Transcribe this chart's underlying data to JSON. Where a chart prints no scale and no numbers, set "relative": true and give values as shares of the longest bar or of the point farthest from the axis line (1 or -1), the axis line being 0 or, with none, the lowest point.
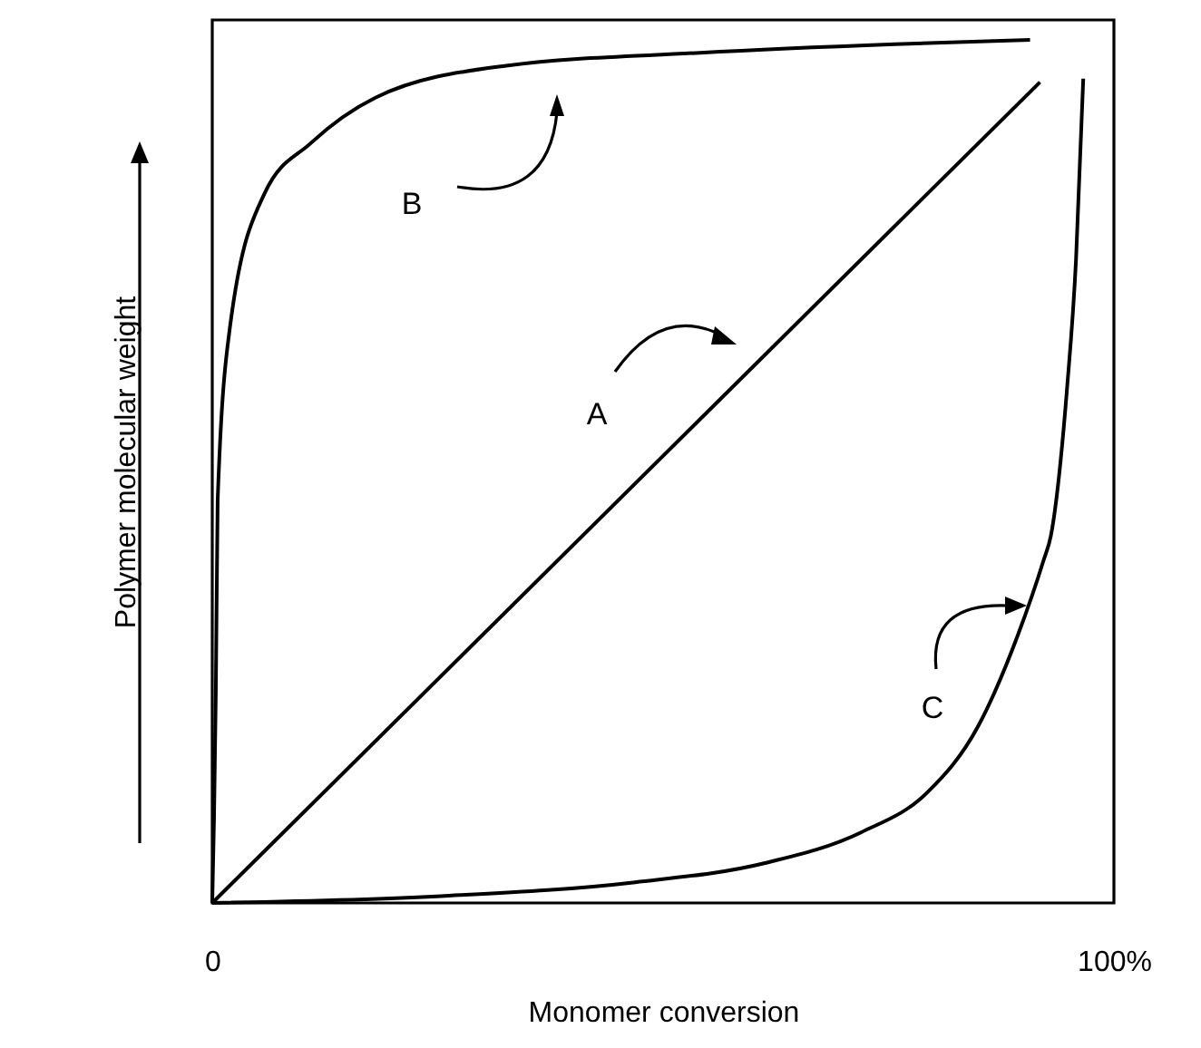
{
  "chart_data": {
    "type": "line",
    "relative": true,
    "xlabel": "Monomer conversion",
    "ylabel": "Polymer molecular weight",
    "xlim": [
      0,
      100
    ],
    "xticks": [
      {
        "value": 0,
        "label": "0"
      },
      {
        "value": 100,
        "label": "100%"
      }
    ],
    "marker": "none",
    "line_style": "solid",
    "series": [
      {
        "name": "A",
        "color": "#000000",
        "x": [
          0,
          91.8
        ],
        "values": [
          0,
          0.951
        ]
      },
      {
        "name": "B",
        "color": "#000000",
        "x": [
          0,
          0.2,
          0.4,
          0.6,
          2.0,
          5.8,
          10.9,
          18.1,
          32.6,
          54.1,
          75.7,
          90.7
        ],
        "values": [
          0,
          0.101,
          0.248,
          0.467,
          0.67,
          0.822,
          0.88,
          0.933,
          0.97,
          0.985,
          0.995,
          1.0
        ]
      },
      {
        "name": "C",
        "color": "#000000",
        "x": [
          0,
          25.4,
          46.9,
          61.2,
          72.0,
          79.3,
          84.9,
          89.3,
          92.2,
          93.0,
          94.8,
          95.8,
          96.6
        ],
        "values": [
          0,
          0.008,
          0.024,
          0.046,
          0.082,
          0.128,
          0.204,
          0.309,
          0.397,
          0.425,
          0.596,
          0.746,
          0.955
        ]
      }
    ]
  }
}
